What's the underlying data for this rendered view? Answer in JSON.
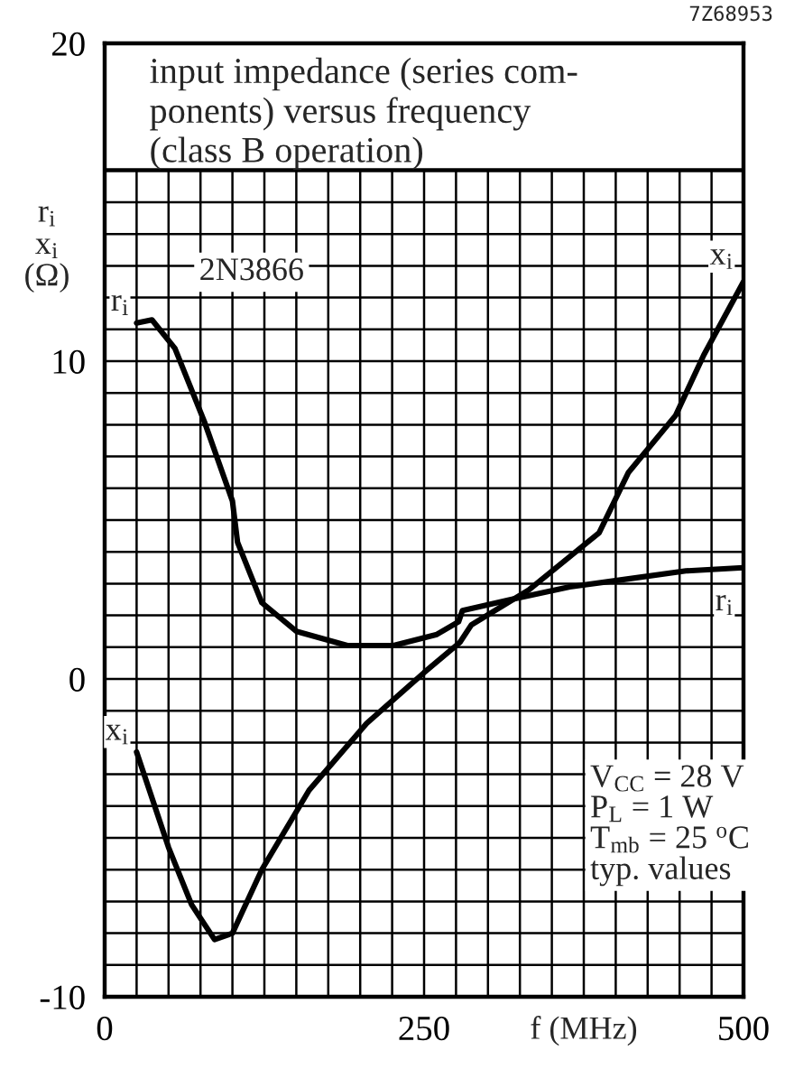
{
  "chart_data": {
    "type": "line",
    "title": "input impedance (series com-\nponents) versus frequency\n(class B operation)",
    "xlabel": "f (MHz)",
    "ylabel": "r$_{i}$\nx$_{i}$\n(Ω)",
    "xlim": [
      0,
      500
    ],
    "ylim": [
      -10,
      20
    ],
    "xticks": [
      0,
      {
        "value": 25,
        "label": null
      },
      {
        "value": 50,
        "label": null
      },
      {
        "value": 75,
        "label": null
      },
      {
        "value": 100,
        "label": null
      },
      {
        "value": 125,
        "label": null
      },
      {
        "value": 150,
        "label": null
      },
      {
        "value": 175,
        "label": null
      },
      {
        "value": 200,
        "label": null
      },
      {
        "value": 225,
        "label": null
      },
      250,
      {
        "value": 275,
        "label": null
      },
      {
        "value": 300,
        "label": null
      },
      {
        "value": 325,
        "label": null
      },
      {
        "value": 350,
        "label": null
      },
      {
        "value": 375,
        "label": null
      },
      {
        "value": 400,
        "label": null
      },
      {
        "value": 425,
        "label": null
      },
      {
        "value": 450,
        "label": null
      },
      {
        "value": 475,
        "label": null
      },
      500
    ],
    "yticks": [
      -10,
      {
        "value": -9,
        "label": null
      },
      {
        "value": -8,
        "label": null
      },
      {
        "value": -7,
        "label": null
      },
      {
        "value": -6,
        "label": null
      },
      {
        "value": -5,
        "label": null
      },
      {
        "value": -4,
        "label": null
      },
      {
        "value": -3,
        "label": null
      },
      {
        "value": -2,
        "label": null
      },
      {
        "value": -1,
        "label": null
      },
      0,
      {
        "value": 1,
        "label": null
      },
      {
        "value": 2,
        "label": null
      },
      {
        "value": 3,
        "label": null
      },
      {
        "value": 4,
        "label": null
      },
      {
        "value": 5,
        "label": null
      },
      {
        "value": 6,
        "label": null
      },
      {
        "value": 7,
        "label": null
      },
      {
        "value": 8,
        "label": null
      },
      {
        "value": 9,
        "label": null
      },
      10,
      {
        "value": 11,
        "label": null
      },
      {
        "value": 12,
        "label": null
      },
      {
        "value": 13,
        "label": null
      },
      {
        "value": 14,
        "label": null
      },
      {
        "value": 15,
        "label": null
      },
      20
    ],
    "grid": true,
    "marker": "none",
    "line_style": "solid",
    "series": [
      {
        "name": "r$_{i}$",
        "color": "#000000",
        "x": [
          25,
          37,
          55,
          78,
          100,
          104,
          123,
          150,
          190,
          226,
          260,
          277,
          280,
          318,
          364,
          410,
          455,
          500
        ],
        "values": [
          11.2,
          11.3,
          10.4,
          8.1,
          5.6,
          4.3,
          2.4,
          1.5,
          1.05,
          1.05,
          1.4,
          1.8,
          2.15,
          2.5,
          2.9,
          3.15,
          3.4,
          3.5
        ]
      },
      {
        "name": "x$_{i}$",
        "color": "#000000",
        "x": [
          25,
          50,
          68,
          86,
          100,
          123,
          160,
          205,
          250,
          278,
          287,
          332,
          387,
          410,
          447,
          469,
          500
        ],
        "values": [
          -2.3,
          -5.3,
          -7.1,
          -8.2,
          -8.0,
          -6.0,
          -3.5,
          -1.4,
          0.2,
          1.15,
          1.7,
          2.8,
          4.6,
          6.5,
          8.3,
          10.2,
          12.5
        ]
      }
    ],
    "annotations": [
      "2N3866",
      "V$_{CC}$ = 28 V\nP$_{L}$ = 1 W\nT$_{mb}$ = 25 $^{o}$C\ntyp. values",
      "7Z68953"
    ]
  }
}
